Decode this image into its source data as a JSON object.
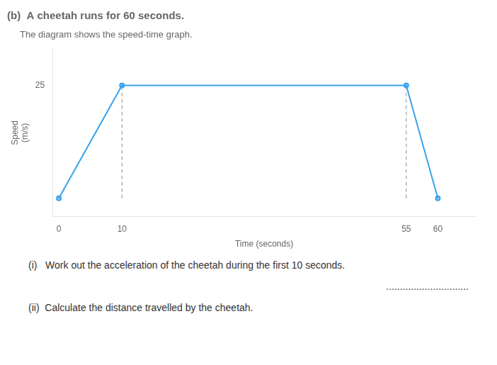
{
  "chart_data": {
    "type": "line",
    "title": "(b)  A cheetah runs for 60 seconds.",
    "subtitle": "     The diagram shows the speed-time graph.",
    "x_label": "Time (seconds)",
    "y_label": [
      "Speed",
      "(m/s)"
    ],
    "x": [
      0,
      10,
      55,
      60
    ],
    "values": [
      0,
      25,
      25,
      0
    ],
    "drop_lines": [
      {
        "x": 10,
        "y": 25
      },
      {
        "x": 55,
        "y": 25
      }
    ],
    "xlim": [
      -1,
      66
    ],
    "ylim": [
      -4,
      33
    ],
    "xticks": [
      0,
      10,
      55,
      60
    ],
    "yticks": [
      25
    ],
    "grid": false,
    "annotations": [
      "(i)   Work out the acceleration of the cheetah during the first 10 seconds.",
      "..............................",
      "(ii)  Calculate the distance travelled by the cheetah."
    ]
  }
}
